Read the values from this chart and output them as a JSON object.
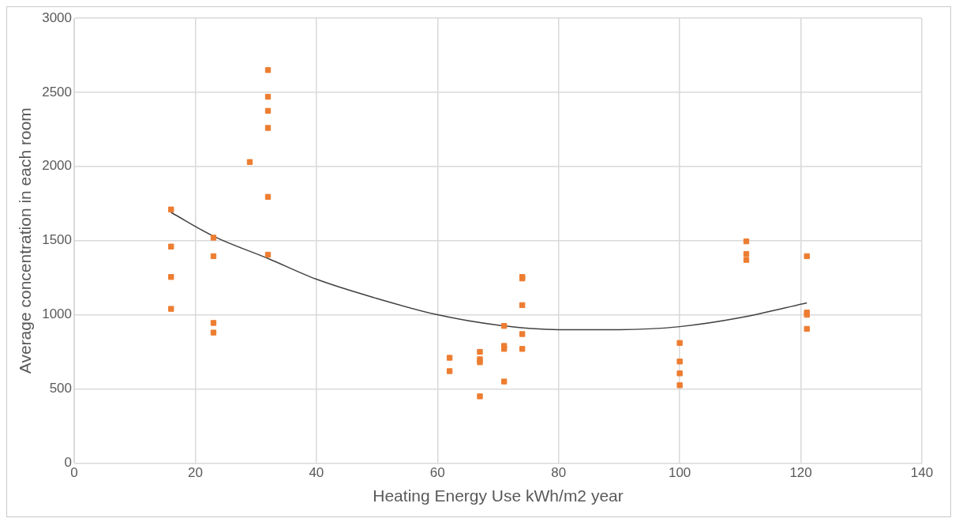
{
  "chart_data": {
    "type": "scatter",
    "xlabel": "Heating Energy Use kWh/m2 year",
    "ylabel": "Average concentration in each room",
    "xlim": [
      0,
      140
    ],
    "xticks": [
      0,
      20,
      40,
      60,
      80,
      100,
      120,
      140
    ],
    "ylim": [
      0,
      3000
    ],
    "yticks": [
      0,
      500,
      1000,
      1500,
      2000,
      2500,
      3000
    ],
    "grid": true,
    "legend": false,
    "marker": "square",
    "series": [
      {
        "color": "#ed7d31",
        "x": [
          16,
          16,
          16,
          16,
          23,
          23,
          23,
          23,
          29,
          32,
          32,
          32,
          32,
          32,
          32,
          62,
          62,
          67,
          67,
          67,
          67,
          71,
          71,
          71,
          71,
          74,
          74,
          74,
          74,
          74,
          100,
          100,
          100,
          100,
          111,
          111,
          111,
          121,
          121,
          121,
          121
        ],
        "values": [
          1710,
          1460,
          1255,
          1040,
          1520,
          1395,
          945,
          880,
          2030,
          2650,
          2470,
          2375,
          2260,
          1795,
          1405,
          710,
          620,
          750,
          700,
          680,
          450,
          925,
          790,
          770,
          550,
          1255,
          1245,
          1065,
          870,
          770,
          810,
          685,
          605,
          525,
          1495,
          1410,
          1370,
          1395,
          1015,
          1000,
          905
        ]
      },
      {
        "type": "line",
        "color": "#404040",
        "marker": "none",
        "line_style": "solid",
        "x": [
          16,
          23,
          32,
          40,
          50,
          60,
          70,
          80,
          90,
          100,
          110,
          121
        ],
        "values": [
          1690,
          1530,
          1380,
          1240,
          1110,
          1000,
          930,
          900,
          900,
          920,
          980,
          1080
        ]
      }
    ]
  }
}
